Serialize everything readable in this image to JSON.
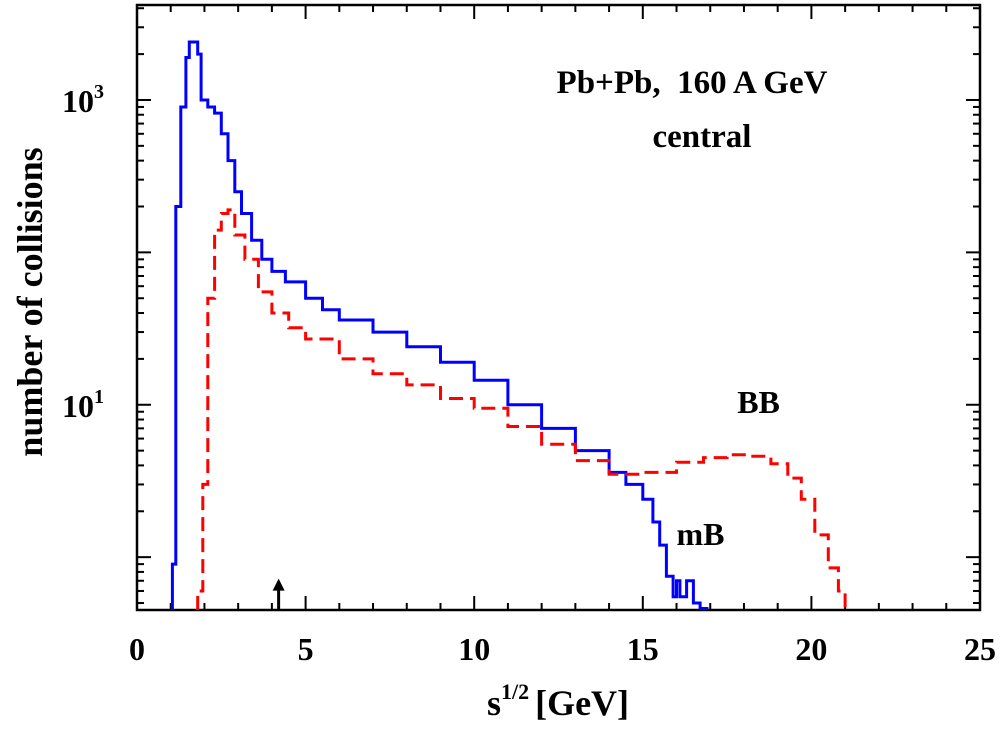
{
  "chart_data": {
    "type": "line",
    "title": "Pb+Pb,  160 A GeV",
    "subtitle": "central",
    "xlabel": "s",
    "xlabel_sup": "1/2",
    "xlabel_unit": "[GeV]",
    "ylabel": "number of collisions",
    "y_scale": "log",
    "xlim": [
      0,
      25
    ],
    "ylim": [
      0.45,
      4200
    ],
    "x_ticks": [
      {
        "v": 0,
        "label": "0"
      },
      {
        "v": 5,
        "label": "5"
      },
      {
        "v": 10,
        "label": "10"
      },
      {
        "v": 15,
        "label": "15"
      },
      {
        "v": 20,
        "label": "20"
      },
      {
        "v": 25,
        "label": "25"
      }
    ],
    "y_tick_labels": [
      {
        "v": 1000,
        "base": "10",
        "exp": "3"
      },
      {
        "v": 10,
        "base": "10",
        "exp": "1"
      }
    ],
    "grid": false,
    "legend": "none",
    "annotation_arrow_x": 4.2,
    "series": [
      {
        "name": "mB",
        "color": "#0000ff",
        "style": "solid",
        "label_at": [
          16.0,
          1.2
        ],
        "points": [
          [
            1.05,
            0.45
          ],
          [
            1.05,
            0.9
          ],
          [
            1.15,
            200
          ],
          [
            1.3,
            900
          ],
          [
            1.45,
            1900
          ],
          [
            1.55,
            2400
          ],
          [
            1.65,
            2400
          ],
          [
            1.8,
            2000
          ],
          [
            1.9,
            1000
          ],
          [
            2.1,
            900
          ],
          [
            2.3,
            820
          ],
          [
            2.5,
            600
          ],
          [
            2.7,
            400
          ],
          [
            2.9,
            250
          ],
          [
            3.1,
            180
          ],
          [
            3.4,
            120
          ],
          [
            3.7,
            90
          ],
          [
            4.0,
            75
          ],
          [
            4.4,
            64
          ],
          [
            5.0,
            50
          ],
          [
            5.5,
            42
          ],
          [
            6.0,
            36
          ],
          [
            7.0,
            30
          ],
          [
            8.0,
            24
          ],
          [
            9.0,
            19
          ],
          [
            10.0,
            14.5
          ],
          [
            11.0,
            10
          ],
          [
            12.0,
            7.0
          ],
          [
            13.0,
            5.0
          ],
          [
            14.0,
            3.6
          ],
          [
            14.5,
            3.0
          ],
          [
            15.0,
            2.4
          ],
          [
            15.3,
            1.7
          ],
          [
            15.5,
            1.2
          ],
          [
            15.7,
            0.75
          ],
          [
            15.9,
            0.55
          ],
          [
            16.0,
            0.7
          ],
          [
            16.1,
            0.55
          ],
          [
            16.3,
            0.7
          ],
          [
            16.5,
            0.5
          ],
          [
            16.7,
            0.46
          ],
          [
            16.9,
            0.45
          ]
        ]
      },
      {
        "name": "BB",
        "color": "#ff0000",
        "style": "dashed",
        "label_at": [
          17.8,
          8.8
        ],
        "points": [
          [
            1.8,
            0.45
          ],
          [
            1.8,
            0.6
          ],
          [
            1.95,
            3.0
          ],
          [
            2.1,
            50
          ],
          [
            2.3,
            140
          ],
          [
            2.5,
            180
          ],
          [
            2.7,
            190
          ],
          [
            2.9,
            130
          ],
          [
            3.2,
            90
          ],
          [
            3.6,
            55
          ],
          [
            4.0,
            40
          ],
          [
            4.5,
            32
          ],
          [
            5.0,
            27
          ],
          [
            6.0,
            20
          ],
          [
            7.0,
            16
          ],
          [
            8.0,
            13.5
          ],
          [
            9.0,
            11
          ],
          [
            10.0,
            9.5
          ],
          [
            11.0,
            7.2
          ],
          [
            12.0,
            5.5
          ],
          [
            13.0,
            4.3
          ],
          [
            14.0,
            3.5
          ],
          [
            15.0,
            3.6
          ],
          [
            16.0,
            4.2
          ],
          [
            16.8,
            4.5
          ],
          [
            17.5,
            4.7
          ],
          [
            18.2,
            4.6
          ],
          [
            18.8,
            4.1
          ],
          [
            19.3,
            3.3
          ],
          [
            19.7,
            2.4
          ],
          [
            20.1,
            1.4
          ],
          [
            20.5,
            0.85
          ],
          [
            20.8,
            0.6
          ],
          [
            21.0,
            0.45
          ]
        ]
      }
    ]
  }
}
